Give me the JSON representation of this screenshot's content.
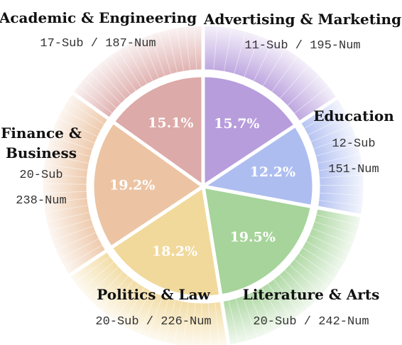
{
  "chart_data": {
    "type": "pie",
    "categories": [
      "Advertising & Marketing",
      "Education",
      "Literature & Arts",
      "Politics & Law",
      "Finance & Business",
      "Academic & Engineering"
    ],
    "values": [
      15.7,
      12.2,
      19.5,
      18.2,
      19.2,
      15.1
    ],
    "value_labels": [
      "15.7%",
      "12.2%",
      "19.5%",
      "18.2%",
      "19.2%",
      "15.1%"
    ],
    "subcategories": [
      11,
      12,
      20,
      20,
      20,
      17
    ],
    "numbers": [
      195,
      151,
      242,
      226,
      238,
      187
    ],
    "count_lines": [
      [
        "11-Sub / 195-Num"
      ],
      [
        "12-Sub",
        "151-Num"
      ],
      [
        "20-Sub / 242-Num"
      ],
      [
        "20-Sub / 226-Num"
      ],
      [
        "20-Sub",
        "238-Num"
      ],
      [
        "17-Sub / 187-Num"
      ]
    ],
    "name_lines": [
      [
        "Advertising & Marketing"
      ],
      [
        "Education"
      ],
      [
        "Literature & Arts"
      ],
      [
        "Politics & Law"
      ],
      [
        "Finance &",
        "Business"
      ],
      [
        "Academic & Engineering"
      ]
    ],
    "colors": [
      "#b79ddc",
      "#aebdf0",
      "#a6d49a",
      "#f1d99c",
      "#ecc4a3",
      "#dcaaa8"
    ],
    "start_angle_deg": 0,
    "direction": "clockwise",
    "outer_ring": true,
    "legend": "none"
  }
}
